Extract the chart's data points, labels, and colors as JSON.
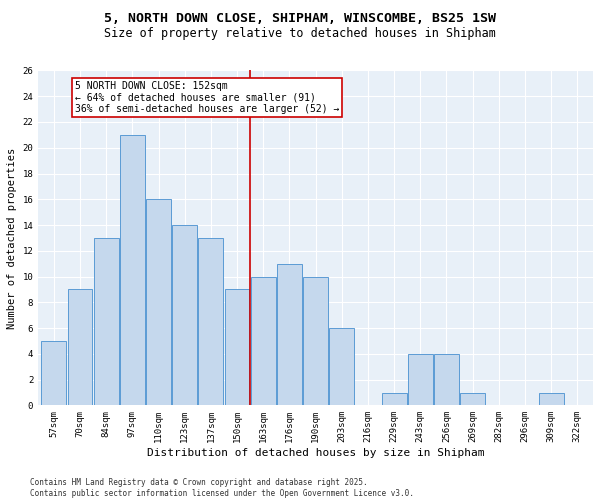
{
  "title": "5, NORTH DOWN CLOSE, SHIPHAM, WINSCOMBE, BS25 1SW",
  "subtitle": "Size of property relative to detached houses in Shipham",
  "xlabel": "Distribution of detached houses by size in Shipham",
  "ylabel": "Number of detached properties",
  "categories": [
    "57sqm",
    "70sqm",
    "84sqm",
    "97sqm",
    "110sqm",
    "123sqm",
    "137sqm",
    "150sqm",
    "163sqm",
    "176sqm",
    "190sqm",
    "203sqm",
    "216sqm",
    "229sqm",
    "243sqm",
    "256sqm",
    "269sqm",
    "282sqm",
    "296sqm",
    "309sqm",
    "322sqm"
  ],
  "values": [
    5,
    9,
    13,
    21,
    16,
    14,
    13,
    9,
    10,
    11,
    10,
    6,
    0,
    1,
    4,
    4,
    1,
    0,
    0,
    1,
    0
  ],
  "bar_color": "#c5d8ed",
  "bar_edge_color": "#5b9bd5",
  "property_line_x": 7.5,
  "annotation_text": "5 NORTH DOWN CLOSE: 152sqm\n← 64% of detached houses are smaller (91)\n36% of semi-detached houses are larger (52) →",
  "annotation_box_color": "#ffffff",
  "annotation_box_edge_color": "#cc0000",
  "vline_color": "#cc0000",
  "ylim": [
    0,
    26
  ],
  "yticks": [
    0,
    2,
    4,
    6,
    8,
    10,
    12,
    14,
    16,
    18,
    20,
    22,
    24,
    26
  ],
  "background_color": "#e8f0f8",
  "footer_text": "Contains HM Land Registry data © Crown copyright and database right 2025.\nContains public sector information licensed under the Open Government Licence v3.0.",
  "title_fontsize": 9.5,
  "subtitle_fontsize": 8.5,
  "xlabel_fontsize": 8,
  "ylabel_fontsize": 7.5,
  "tick_fontsize": 6.5,
  "annotation_fontsize": 7,
  "footer_fontsize": 5.5
}
